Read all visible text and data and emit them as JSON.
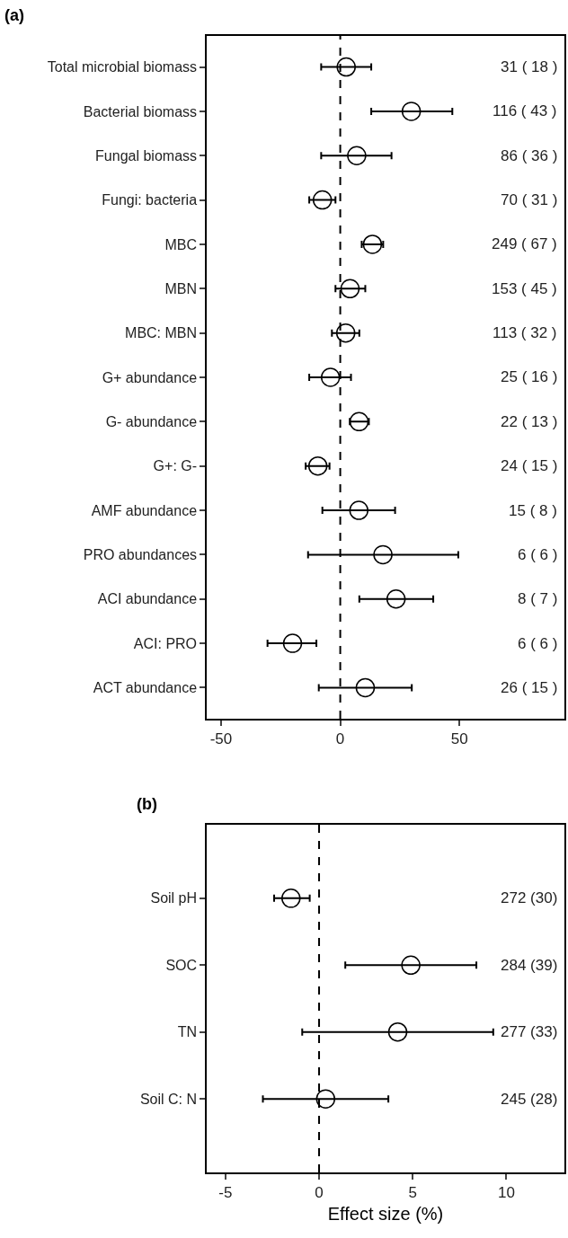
{
  "chart_data": [
    {
      "type": "scatter",
      "title": "(a)",
      "marker": "circle",
      "color": "#000000",
      "orientation": "horizontal",
      "categories": [
        "Total microbial biomass",
        "Bacterial biomass",
        "Fungal biomass",
        "Fungi: bacteria",
        "MBC",
        "MBN",
        "MBC: MBN",
        "G+ abundance",
        "G- abundance",
        "G+: G-",
        "AMF abundance",
        "PRO abundances",
        "ACI abundance",
        "ACI: PRO",
        "ACT abundance"
      ],
      "values": [
        2.5,
        29.8,
        6.9,
        -7.5,
        13.5,
        4.1,
        2.3,
        -4.1,
        7.9,
        -9.4,
        7.8,
        17.9,
        23.4,
        -20,
        10.5
      ],
      "errors": [
        [
          -8,
          13
        ],
        [
          13,
          47
        ],
        [
          -8,
          21.5
        ],
        [
          -13,
          -2
        ],
        [
          9,
          18
        ],
        [
          -2,
          10.5
        ],
        [
          -3.5,
          8
        ],
        [
          -13,
          4.5
        ],
        [
          4,
          12
        ],
        [
          -14.5,
          -4.5
        ],
        [
          -7.5,
          23
        ],
        [
          -13.5,
          49.5
        ],
        [
          8,
          39
        ],
        [
          -30.5,
          -10
        ],
        [
          -9,
          30
        ]
      ],
      "xlim": [
        -56,
        94
      ],
      "xticks": [
        -50,
        0,
        50
      ],
      "ref_lines": [
        {
          "axis": "x",
          "value": 0,
          "line_style": "dashed",
          "color": "#000000"
        }
      ],
      "annotations": [
        "31 ( 18 )",
        "116 ( 43 )",
        "86 ( 36 )",
        "70 ( 31 )",
        "249 ( 67 )",
        "153 ( 45 )",
        "113 ( 32 )",
        "25 ( 16 )",
        "22 ( 13 )",
        "24 ( 15 )",
        "15 ( 8 )",
        "6 ( 6 )",
        "8 ( 7 )",
        "6 ( 6 )",
        "26 ( 15 )"
      ]
    },
    {
      "type": "scatter",
      "title": "(b)",
      "xlabel": "Effect size (%)",
      "marker": "circle",
      "color": "#000000",
      "orientation": "horizontal",
      "categories": [
        "Soil pH",
        "SOC",
        "TN",
        "Soil C: N"
      ],
      "values": [
        -1.5,
        4.9,
        4.2,
        0.35
      ],
      "errors": [
        [
          -2.4,
          -0.5
        ],
        [
          1.4,
          8.4
        ],
        [
          -0.9,
          9.3
        ],
        [
          -3,
          3.7
        ]
      ],
      "xlim": [
        -6,
        13.1
      ],
      "xticks": [
        -5,
        0,
        5,
        10
      ],
      "ref_lines": [
        {
          "axis": "x",
          "value": 0,
          "line_style": "dashed",
          "color": "#000000"
        }
      ],
      "annotations": [
        "272 (30)",
        "284 (39)",
        "277 (33)",
        "245 (28)"
      ]
    }
  ]
}
